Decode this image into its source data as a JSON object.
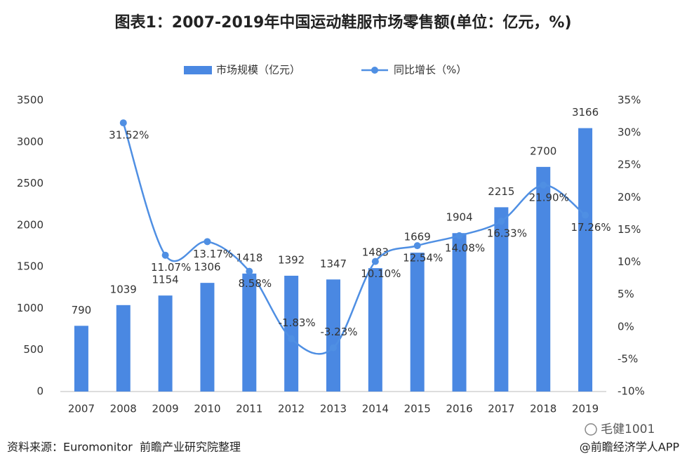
{
  "chart_data": {
    "type": "bar",
    "title": "图表1：2007-2019年中国运动鞋服市场零售额(单位：亿元，%)",
    "categories": [
      "2007",
      "2008",
      "2009",
      "2010",
      "2011",
      "2012",
      "2013",
      "2014",
      "2015",
      "2016",
      "2017",
      "2018",
      "2019"
    ],
    "series": [
      {
        "name": "市场规模（亿元）",
        "type": "bar",
        "color": "#4a88e2",
        "values": [
          790,
          1039,
          1154,
          1306,
          1418,
          1392,
          1347,
          1483,
          1669,
          1904,
          2215,
          2700,
          3166
        ]
      },
      {
        "name": "同比增长（%）",
        "type": "line",
        "axis": "y2",
        "color": "#4f8fe3",
        "values": [
          null,
          31.52,
          11.07,
          13.17,
          8.58,
          -1.83,
          -3.23,
          10.1,
          12.54,
          14.08,
          16.33,
          21.9,
          17.26
        ],
        "value_labels": [
          null,
          "31.52%",
          "11.07%",
          "13.17%",
          "8.58%",
          "-1.83%",
          "-3.23%",
          "10.10%",
          "12.54%",
          "14.08%",
          "16.33%",
          "21.90%",
          "17.26%"
        ]
      }
    ],
    "ylim": [
      0,
      3500
    ],
    "yticks": [
      0,
      500,
      1000,
      1500,
      2000,
      2500,
      3000,
      3500
    ],
    "y2lim": [
      -10,
      35
    ],
    "y2ticks": [
      {
        "value": -10,
        "label": "-10%"
      },
      {
        "value": -5,
        "label": "-5%"
      },
      {
        "value": 0,
        "label": "0%"
      },
      {
        "value": 5,
        "label": "5%"
      },
      {
        "value": 10,
        "label": "10%"
      },
      {
        "value": 15,
        "label": "15%"
      },
      {
        "value": 20,
        "label": "20%"
      },
      {
        "value": 25,
        "label": "25%"
      },
      {
        "value": 30,
        "label": "30%"
      },
      {
        "value": 35,
        "label": "35%"
      }
    ],
    "grid": false,
    "legend": "top",
    "source": "资料来源：Euromonitor  前瞻产业研究院整理",
    "credit": "@前瞻经济学人APP",
    "watermark": "毛健1001"
  }
}
